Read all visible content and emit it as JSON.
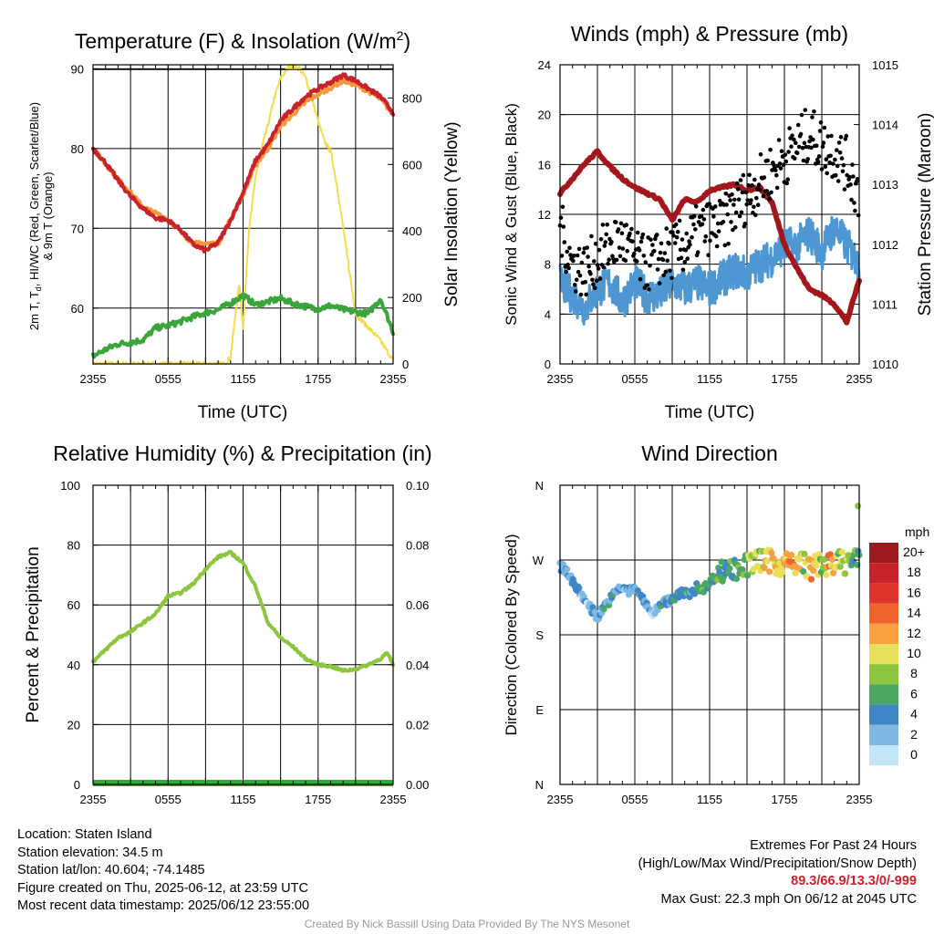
{
  "panels": {
    "temperature": {
      "title": "Temperature (F) & Insolation (W/m",
      "title_sup": "2",
      "title_close": ")",
      "ylabel_line1": "2m T, T",
      "ylabel_sub": "d",
      "ylabel_line1_rest": ", HI/WC (Red, Green, Scarlet/Blue)",
      "ylabel_line2": "& 9m T (Orange)",
      "y2label": "Solar Insolation (Yellow)",
      "xlabel": "Time (UTC)"
    },
    "winds": {
      "title": "Winds (mph) & Pressure (mb)",
      "ylabel": "Sonic Wind & Gust (Blue, Black)",
      "y2label": "Station Pressure (Maroon)",
      "xlabel": "Time (UTC)"
    },
    "humidity": {
      "title": "Relative Humidity (%) & Precipitation (in)",
      "ylabel": "Percent & Precipitation"
    },
    "direction": {
      "title": "Wind Direction",
      "ylabel": "Direction (Colored By Speed)"
    }
  },
  "colorbar": {
    "unit": "mph",
    "labels": [
      "20+",
      "18",
      "16",
      "14",
      "12",
      "10",
      "8",
      "6",
      "4",
      "2",
      "0"
    ],
    "colors": [
      "#9b1b1e",
      "#c8232b",
      "#e0352d",
      "#f0652f",
      "#f7a140",
      "#e8df5a",
      "#8cc63f",
      "#4aa862",
      "#3f86c6",
      "#7fb8e2",
      "#c2e6f7"
    ]
  },
  "info": {
    "location": "Location: Staten Island",
    "elevation": "Station elevation: 34.5 m",
    "latlon": "Station lat/lon: 40.604; -74.1485",
    "created": "Figure created on Thu, 2025-06-12, at 23:59 UTC",
    "recent": "Most recent data timestamp: 2025/06/12 23:55:00"
  },
  "extremes": {
    "title": "Extremes For Past 24 Hours",
    "subtitle": "(High/Low/Max Wind/Precipitation/Snow Depth)",
    "values": "89.3/66.9/13.3/0/-999",
    "max_gust": "Max Gust: 22.3 mph On 06/12 at 2045 UTC"
  },
  "credit": "Created By Nick Bassill Using Data Provided By The NYS Mesonet",
  "colors": {
    "temp_red": "#c8232b",
    "temp_9m_orange": "#f59a3c",
    "dewpoint_green": "#3aa53a",
    "insolation_yellow": "#f4dc4c",
    "wind_blue": "#4f97d2",
    "gust_black": "#000000",
    "pressure_maroon": "#a3161b",
    "rh_green": "#8cc63f",
    "precip_green": "#3aa53a"
  },
  "chart_data": [
    {
      "type": "line",
      "title": "Temperature (F) & Insolation (W/m2)",
      "xlabel": "Time (UTC)",
      "x_ticks": [
        "2355",
        "0555",
        "1155",
        "1755",
        "2355"
      ],
      "x_hours": [
        0,
        3,
        6,
        9,
        12,
        15,
        18,
        21,
        24
      ],
      "ylim": [
        53,
        90.5
      ],
      "y_ticks": [
        60,
        70,
        80,
        90
      ],
      "y2lim": [
        0,
        900
      ],
      "y2_ticks": [
        0,
        200,
        400,
        600,
        800
      ],
      "series": [
        {
          "name": "2m T",
          "axis": "left",
          "x": [
            0,
            1,
            2,
            3,
            4,
            5,
            6,
            7,
            8,
            9,
            10,
            11,
            12,
            13,
            14,
            15,
            16,
            17,
            18,
            19,
            20,
            21,
            22,
            23,
            24
          ],
          "values": [
            80,
            78.2,
            76,
            74,
            72.5,
            71.3,
            71,
            69.8,
            68,
            67.2,
            68.2,
            71,
            74.5,
            78.5,
            80.5,
            83.5,
            85,
            86.5,
            87.5,
            88.3,
            89.2,
            88.5,
            87.5,
            86.5,
            84.5
          ]
        },
        {
          "name": "9m T",
          "axis": "left",
          "x": [
            0,
            2,
            4,
            6,
            8,
            10,
            12,
            13,
            14,
            15,
            16,
            17,
            18,
            19,
            20,
            21,
            22,
            23,
            24
          ],
          "values": [
            80,
            76.2,
            72.7,
            71.1,
            68.1,
            68.1,
            74.2,
            78,
            80,
            82.8,
            84.3,
            85.8,
            86.8,
            87.6,
            88.5,
            88,
            87.2,
            86.2,
            84.3
          ]
        },
        {
          "name": "Td",
          "axis": "left",
          "x": [
            0,
            1,
            2,
            3,
            4,
            5,
            6,
            7,
            8,
            9,
            10,
            11,
            12,
            13,
            14,
            15,
            16,
            17,
            18,
            19,
            20,
            21,
            22,
            23,
            24
          ],
          "values": [
            54,
            54.8,
            55.5,
            55.7,
            56,
            57.5,
            57.8,
            58.3,
            58.9,
            59.4,
            59.8,
            60.6,
            61.6,
            60.4,
            60.8,
            61.2,
            60.6,
            60.2,
            59.9,
            60.3,
            59.8,
            59.5,
            59.3,
            61.2,
            57
          ]
        },
        {
          "name": "Insolation",
          "axis": "right",
          "x": [
            0,
            9,
            10.5,
            11,
            11.4,
            11.7,
            12,
            12.5,
            13,
            13.5,
            14,
            14.5,
            15,
            15.7,
            16.5,
            17,
            17.5,
            18,
            18.5,
            19,
            19.5,
            20,
            20.5,
            21,
            22,
            23,
            24
          ],
          "values": [
            0,
            0,
            0,
            20,
            150,
            240,
            110,
            420,
            560,
            650,
            720,
            800,
            860,
            895,
            890,
            860,
            800,
            730,
            670,
            640,
            540,
            410,
            280,
            150,
            110,
            70,
            10
          ]
        }
      ]
    },
    {
      "type": "line",
      "title": "Winds (mph) & Pressure (mb)",
      "xlabel": "Time (UTC)",
      "x_ticks": [
        "2355",
        "0555",
        "1155",
        "1755",
        "2355"
      ],
      "ylim": [
        0,
        24
      ],
      "y_ticks": [
        0,
        4,
        8,
        12,
        16,
        20,
        24
      ],
      "y2lim": [
        1010,
        1015
      ],
      "y2_ticks": [
        1010,
        1011,
        1012,
        1013,
        1014,
        1015
      ],
      "series": [
        {
          "name": "Sonic Wind",
          "axis": "left",
          "x": [
            0,
            1,
            2,
            3,
            4,
            5,
            6,
            7,
            8,
            9,
            10,
            11,
            12,
            13,
            14,
            15,
            16,
            17,
            18,
            19,
            20,
            21,
            22,
            23,
            24
          ],
          "values": [
            6.5,
            5.5,
            4.5,
            6,
            6.5,
            5,
            6.5,
            5.5,
            5.5,
            6.5,
            6,
            6.5,
            6,
            6.8,
            7.5,
            7.2,
            8,
            8.5,
            9.5,
            9.5,
            10.5,
            9,
            11,
            9.5,
            8
          ]
        },
        {
          "name": "Gust",
          "axis": "left",
          "x": [
            0,
            1,
            2,
            3,
            4,
            5,
            6,
            7,
            8,
            9,
            10,
            11,
            12,
            13,
            14,
            15,
            16,
            17,
            18,
            19,
            20,
            21,
            22,
            23,
            24
          ],
          "values": [
            11,
            8,
            7.5,
            8.5,
            9.5,
            10,
            8.5,
            8,
            8.5,
            9,
            9.5,
            10.5,
            11,
            11,
            12.5,
            13.5,
            14.5,
            15.5,
            16.5,
            17.5,
            18.5,
            17.5,
            17,
            16,
            13.5
          ]
        },
        {
          "name": "Station Pressure",
          "axis": "right",
          "x": [
            0,
            1,
            2,
            3,
            4,
            5,
            6,
            7,
            8,
            9,
            10,
            11,
            12,
            13,
            14,
            15,
            16,
            17,
            18,
            19,
            20,
            21,
            22,
            23,
            24
          ],
          "values": [
            1012.85,
            1013.1,
            1013.35,
            1013.55,
            1013.3,
            1013.1,
            1012.95,
            1012.85,
            1012.75,
            1012.4,
            1012.75,
            1012.7,
            1012.9,
            1012.95,
            1013.0,
            1012.9,
            1012.95,
            1012.7,
            1012.0,
            1011.6,
            1011.25,
            1011.15,
            1011.0,
            1010.7,
            1011.4
          ]
        }
      ]
    },
    {
      "type": "line",
      "title": "Relative Humidity (%) & Precipitation (in)",
      "x_ticks": [
        "2355",
        "0555",
        "1155",
        "1755",
        "2355"
      ],
      "ylim": [
        0,
        100
      ],
      "y_ticks": [
        0,
        20,
        40,
        60,
        80,
        100
      ],
      "y2lim": [
        0,
        0.1
      ],
      "y2_ticks": [
        "0.00",
        "0.02",
        "0.04",
        "0.06",
        "0.08",
        "0.10"
      ],
      "series": [
        {
          "name": "RH",
          "axis": "left",
          "x": [
            0,
            1,
            2,
            3,
            4,
            5,
            6,
            7,
            8,
            9,
            10,
            11,
            12,
            13,
            14,
            15,
            16,
            17,
            18,
            19,
            20,
            21,
            22,
            23,
            23.5,
            24
          ],
          "values": [
            41,
            45,
            49,
            51,
            54,
            57,
            63,
            64,
            67,
            72,
            76,
            77.5,
            74,
            66,
            54,
            49,
            46,
            42,
            40,
            39.5,
            38,
            38.5,
            40,
            42,
            44,
            40
          ]
        },
        {
          "name": "Precipitation",
          "axis": "right",
          "x": [
            0,
            24
          ],
          "values": [
            0,
            0
          ]
        }
      ]
    },
    {
      "type": "scatter",
      "title": "Wind Direction",
      "x_ticks": [
        "2355",
        "0555",
        "1155",
        "1755",
        "2355"
      ],
      "y_ticks": [
        "N",
        "E",
        "S",
        "W",
        "N"
      ],
      "ylim": [
        0,
        360
      ],
      "colorbar_unit": "mph",
      "series": [
        {
          "name": "Direction",
          "x": [
            0,
            0.5,
            1,
            1.5,
            2,
            2.5,
            3,
            3.5,
            4,
            4.5,
            5,
            5.5,
            6,
            6.5,
            7,
            7.5,
            8,
            8.5,
            9,
            9.5,
            10,
            10.5,
            11,
            11.5,
            12,
            12.5,
            13,
            13.5,
            14,
            14.5,
            15,
            15.5,
            16,
            16.5,
            17,
            17.5,
            18,
            18.5,
            19,
            19.5,
            20,
            20.5,
            21,
            21.5,
            22,
            22.5,
            23,
            23.5,
            24
          ],
          "values": [
            262,
            258,
            245,
            232,
            222,
            212,
            200,
            214,
            222,
            232,
            238,
            232,
            236,
            228,
            212,
            206,
            218,
            220,
            222,
            228,
            232,
            228,
            238,
            236,
            242,
            252,
            256,
            262,
            258,
            264,
            262,
            268,
            270,
            266,
            272,
            262,
            270,
            264,
            262,
            270,
            258,
            262,
            268,
            264,
            262,
            270,
            266,
            272,
            268
          ],
          "speed": [
            4,
            4,
            4,
            4,
            3,
            3,
            4,
            5,
            5,
            4,
            4,
            3,
            4,
            4,
            4,
            3,
            5,
            6,
            5,
            5,
            6,
            5,
            6,
            7,
            6,
            7,
            6,
            6,
            7,
            8,
            9,
            10,
            9,
            11,
            12,
            10,
            13,
            14,
            12,
            9,
            13,
            12,
            8,
            14,
            11,
            9,
            10,
            7,
            7
          ]
        }
      ]
    }
  ]
}
